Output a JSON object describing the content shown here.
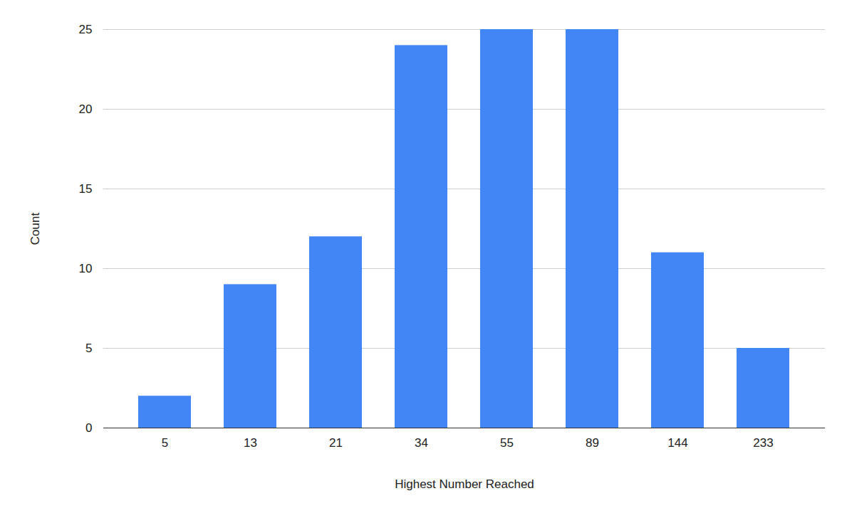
{
  "chart_data": {
    "type": "bar",
    "x_label": "Highest Number Reached",
    "y_label": "Count",
    "categories": [
      "5",
      "13",
      "21",
      "34",
      "55",
      "89",
      "144",
      "233"
    ],
    "values": [
      2,
      9,
      12,
      24,
      25,
      25,
      11,
      5
    ],
    "color": "#4285f4",
    "ylim": [
      0,
      25
    ],
    "yticks": [
      0,
      5,
      10,
      15,
      20,
      25
    ],
    "grid": true
  }
}
